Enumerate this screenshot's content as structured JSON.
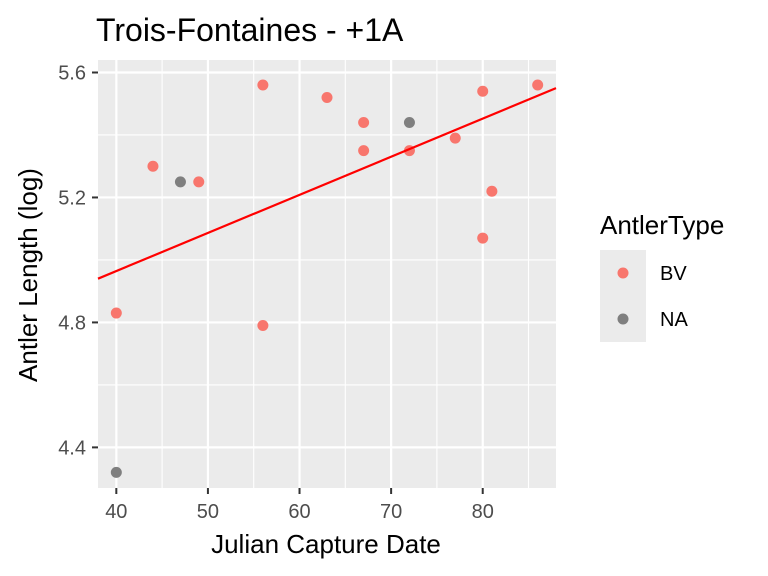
{
  "chart_data": {
    "type": "scatter",
    "title": "Trois-Fontaines - +1A",
    "xlabel": "Julian Capture Date",
    "ylabel": "Antler Length (log)",
    "xlim": [
      38,
      88
    ],
    "ylim": [
      4.27,
      5.64
    ],
    "x_ticks": [
      40,
      50,
      60,
      70,
      80
    ],
    "y_ticks": [
      4.4,
      4.8,
      5.2,
      5.6
    ],
    "y_tick_labels": [
      "4.4",
      "4.8",
      "5.2",
      "5.6"
    ],
    "grid": true,
    "panel_background": "#ebebeb",
    "legend": {
      "title": "AntlerType",
      "position": "right",
      "entries": [
        {
          "label": "BV",
          "color": "#f8766d"
        },
        {
          "label": "NA",
          "color": "#7f7f7f"
        }
      ]
    },
    "series": [
      {
        "name": "BV",
        "color": "#f8766d",
        "points": [
          [
            40,
            4.83
          ],
          [
            44,
            5.3
          ],
          [
            49,
            5.25
          ],
          [
            56,
            5.56
          ],
          [
            56,
            4.79
          ],
          [
            63,
            5.52
          ],
          [
            67,
            5.44
          ],
          [
            67,
            5.35
          ],
          [
            72,
            5.35
          ],
          [
            77,
            5.39
          ],
          [
            80,
            5.54
          ],
          [
            80,
            5.07
          ],
          [
            81,
            5.22
          ],
          [
            86,
            5.56
          ]
        ]
      },
      {
        "name": "NA",
        "color": "#7f7f7f",
        "points": [
          [
            40,
            4.32
          ],
          [
            47,
            5.25
          ],
          [
            72,
            5.44
          ]
        ]
      }
    ],
    "trend_line": {
      "color": "#ff0000",
      "start": [
        38,
        4.94
      ],
      "end": [
        88,
        5.55
      ]
    }
  }
}
